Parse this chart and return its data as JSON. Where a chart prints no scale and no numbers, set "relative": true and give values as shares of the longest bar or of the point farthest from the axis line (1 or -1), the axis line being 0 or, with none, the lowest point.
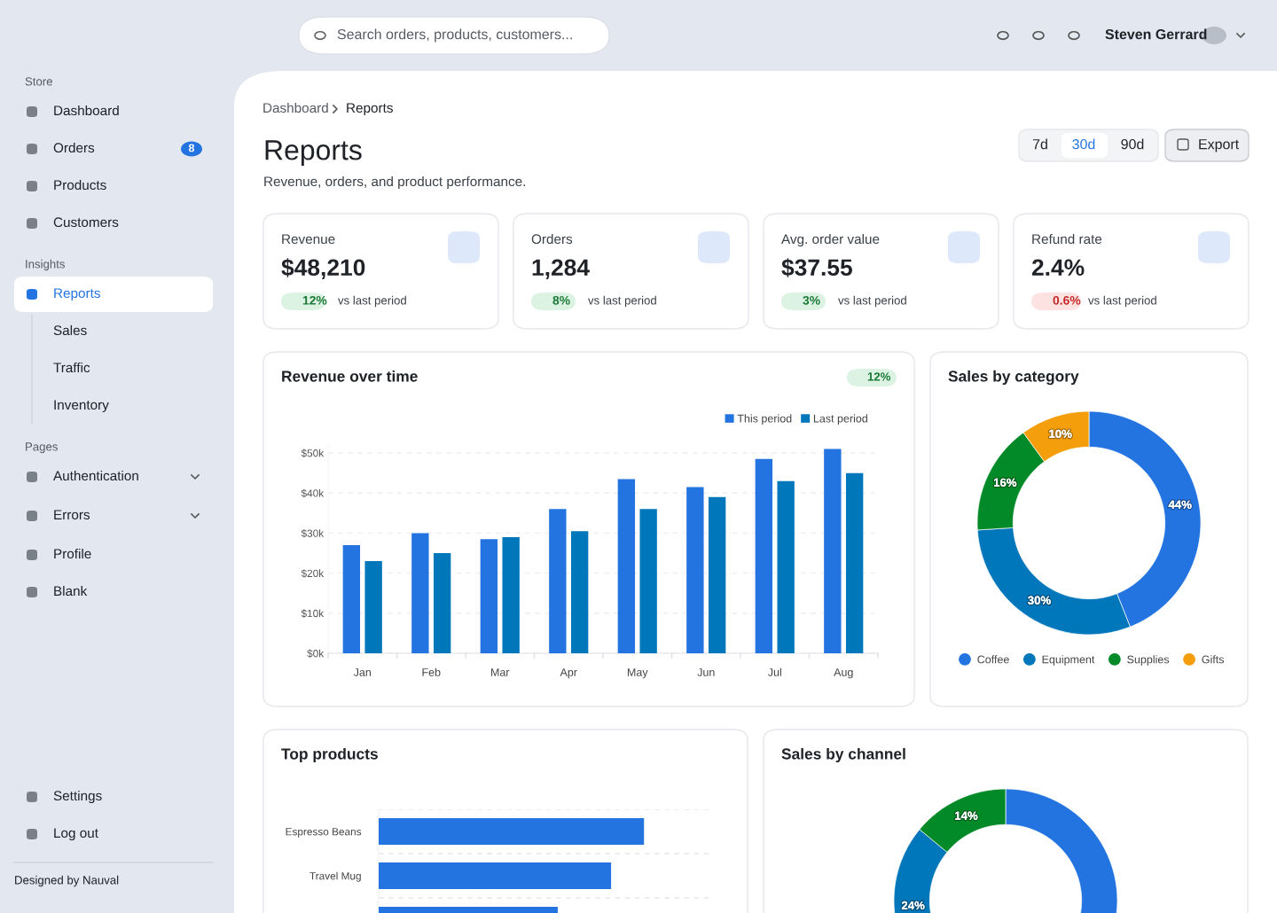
{
  "chart_data": [
    {
      "type": "other",
      "annotations": [
        "Search orders, products, customers...",
        "Steven Gerrard",
        "Store",
        "Dashboard",
        "Orders",
        "8",
        "Products",
        "Customers",
        "Insights",
        "Reports",
        "Sales",
        "Traffic",
        "Inventory",
        "Pages",
        "Authentication",
        "Errors",
        "Profile",
        "Blank",
        "Settings",
        "Log out",
        "Designed by Nauval"
      ]
    },
    {
      "type": "other",
      "title": "Reports",
      "subtitle": "Revenue, orders, and product performance.",
      "annotations": [
        "Dashboard",
        "Reports",
        "7d",
        "30d",
        "90d",
        "Export",
        "Revenue",
        "$48,210",
        "12%",
        "vs last period",
        "Orders",
        "1,284",
        "8%",
        "vs last period",
        "Avg. order value",
        "$37.55",
        "3%",
        "vs last period",
        "Refund rate",
        "2.4%",
        "0.6%",
        "vs last period"
      ]
    },
    {
      "type": "bar",
      "title": "Revenue over time",
      "annotations": [
        "12%"
      ],
      "categories": [
        "Jan",
        "Feb",
        "Mar",
        "Apr",
        "May",
        "Jun",
        "Jul",
        "Aug"
      ],
      "series": [
        {
          "name": "This period",
          "color": "#2374e1",
          "values": [
            27,
            30,
            28.5,
            36,
            43.5,
            41.5,
            48.5,
            51
          ]
        },
        {
          "name": "Last period",
          "color": "#0077bb",
          "values": [
            23,
            25,
            29,
            30.5,
            36,
            39,
            43,
            45
          ]
        }
      ],
      "ylim": [
        0,
        52
      ],
      "yticks": [
        {
          "value": 0,
          "label": "$0k"
        },
        {
          "value": 10,
          "label": "$10k"
        },
        {
          "value": 20,
          "label": "$20k"
        },
        {
          "value": 30,
          "label": "$30k"
        },
        {
          "value": 40,
          "label": "$40k"
        },
        {
          "value": 50,
          "label": "$50k"
        }
      ],
      "grid": "y",
      "legend": "top right"
    },
    {
      "type": "donut",
      "title": "Sales by category",
      "categories": [
        "Coffee",
        "Equipment",
        "Supplies",
        "Gifts"
      ],
      "values": [
        44,
        30,
        16,
        10
      ],
      "colors": [
        "#2374e1",
        "#0077bb",
        "#038a28",
        "#f59e0b"
      ],
      "value_labels": [
        "44%",
        "30%",
        "16%",
        "10%"
      ],
      "legend": "bottom"
    },
    {
      "type": "bar",
      "title": "Top products",
      "orientation": "horizontal",
      "relative": true,
      "categories": [
        "Espresso Beans",
        "Travel Mug",
        null
      ],
      "values": [
        1,
        0.876,
        0.675
      ],
      "color": "#2374e1",
      "grid": "y"
    },
    {
      "type": "donut",
      "title": "Sales by channel",
      "categories": [
        null,
        null,
        null
      ],
      "values": [
        62,
        24,
        14
      ],
      "colors": [
        "#2374e1",
        "#0077bb",
        "#038a28"
      ],
      "value_labels": [
        null,
        "24%",
        "14%"
      ]
    }
  ]
}
